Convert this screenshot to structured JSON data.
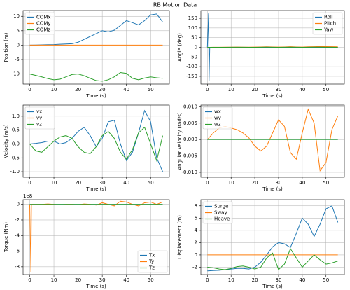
{
  "title": "RB Motion Data",
  "chart_data": [
    {
      "type": "line",
      "x_label": "Time (s)",
      "y_label": "Position (m)",
      "x": [
        0,
        2.5,
        5,
        7.5,
        10,
        12.5,
        15,
        17.5,
        20,
        22.5,
        25,
        27.5,
        30,
        32.5,
        35,
        37.5,
        40,
        42.5,
        45,
        47.5,
        50,
        52.5,
        55
      ],
      "xlim": [
        -2.75,
        57.75
      ],
      "xticks": [
        0,
        10,
        20,
        30,
        40,
        50
      ],
      "ylim": [
        -13.5,
        12
      ],
      "yticks": [
        -10,
        -5,
        0,
        5,
        10
      ],
      "grid": true,
      "legend": "upper left",
      "series": [
        {
          "name": "COMx",
          "color": "#1f77b4",
          "values": [
            0,
            0.05,
            0.1,
            0.15,
            0.2,
            0.3,
            0.4,
            0.5,
            1.0,
            2.0,
            3.0,
            4.0,
            5.0,
            4.6,
            5.2,
            6.8,
            8.5,
            7.8,
            7.0,
            8.5,
            10.5,
            10.8,
            8.0
          ]
        },
        {
          "name": "COMy",
          "color": "#ff7f0e",
          "values": [
            0,
            0,
            0,
            0,
            0,
            0,
            0,
            0,
            0,
            0,
            0,
            0,
            0,
            0,
            0,
            0,
            0,
            0,
            0,
            0,
            0,
            0,
            0
          ]
        },
        {
          "name": "COMz",
          "color": "#2ca02c",
          "values": [
            -10,
            -10.5,
            -11,
            -11.6,
            -12,
            -11.8,
            -11,
            -10.2,
            -10,
            -10.6,
            -11.5,
            -12.3,
            -12.5,
            -12,
            -11,
            -9.5,
            -9.8,
            -11.5,
            -12,
            -11.4,
            -11,
            -11.3,
            -11.5
          ]
        }
      ]
    },
    {
      "type": "line",
      "x_label": "Time (s)",
      "y_label": "Angle (deg)",
      "x": [
        0,
        0.5,
        0.7,
        1,
        2.5,
        5,
        7.5,
        10,
        12.5,
        15,
        17.5,
        20,
        22.5,
        25,
        27.5,
        30,
        32.5,
        35,
        37.5,
        40,
        42.5,
        45,
        47.5,
        50,
        52.5,
        55
      ],
      "xlim": [
        -2.75,
        57.75
      ],
      "xticks": [
        0,
        10,
        20,
        30,
        40,
        50
      ],
      "ylim": [
        -190,
        190
      ],
      "yticks": [
        -150,
        -100,
        -50,
        0,
        50,
        100,
        150
      ],
      "grid": true,
      "legend": "upper right",
      "series": [
        {
          "name": "Roll",
          "color": "#1f77b4",
          "values": [
            0,
            175,
            -175,
            0,
            0,
            0,
            0,
            0,
            0,
            0,
            0,
            0,
            0,
            0,
            0,
            0,
            0,
            0,
            0,
            0,
            0,
            0,
            0,
            0,
            0,
            0
          ]
        },
        {
          "name": "Pitch",
          "color": "#ff7f0e",
          "values": [
            0,
            0,
            0,
            0,
            0.5,
            0.5,
            1,
            1,
            1.5,
            1,
            1,
            1.5,
            2,
            2.5,
            2,
            1.5,
            2,
            3,
            2,
            1.5,
            2.5,
            3,
            4,
            3.5,
            3,
            2.5
          ]
        },
        {
          "name": "Yaw",
          "color": "#2ca02c",
          "values": [
            0,
            0,
            0,
            0,
            0,
            0,
            0,
            0.5,
            0.5,
            0.5,
            0,
            0,
            0.5,
            1,
            0.5,
            0,
            0.5,
            1,
            0.5,
            0,
            0.5,
            1,
            1,
            0.5,
            0.5,
            0
          ]
        }
      ]
    },
    {
      "type": "line",
      "x_label": "Time (s)",
      "y_label": "Velocity (m/s)",
      "x": [
        0,
        2.5,
        5,
        7.5,
        10,
        12.5,
        15,
        17.5,
        20,
        22.5,
        25,
        27.5,
        30,
        32.5,
        35,
        37.5,
        40,
        42.5,
        45,
        47.5,
        50,
        52.5,
        55
      ],
      "xlim": [
        -2.75,
        57.75
      ],
      "xticks": [
        0,
        10,
        20,
        30,
        40,
        50
      ],
      "ylim": [
        -1.2,
        1.4
      ],
      "yticks": [
        {
          "value": -1,
          "label": "-1.0"
        },
        -0.5,
        {
          "value": 0,
          "label": "0.0"
        },
        0.5,
        {
          "value": 1,
          "label": "1.0"
        }
      ],
      "grid": true,
      "legend": "upper left",
      "series": [
        {
          "name": "vx",
          "color": "#1f77b4",
          "values": [
            0,
            0.02,
            0.05,
            0.1,
            0.1,
            0.0,
            0.05,
            0.2,
            0.45,
            0.6,
            0.3,
            -0.1,
            0.2,
            0.8,
            0.85,
            0.0,
            -0.6,
            -0.3,
            0.4,
            1.2,
            0.8,
            -0.5,
            -1.0
          ]
        },
        {
          "name": "vy",
          "color": "#ff7f0e",
          "values": [
            0,
            0,
            0,
            0,
            0,
            0,
            0,
            0,
            0,
            0,
            0,
            0,
            0,
            0,
            0,
            0,
            0,
            0,
            0,
            0,
            0,
            0,
            0
          ]
        },
        {
          "name": "vz",
          "color": "#2ca02c",
          "values": [
            0,
            -0.25,
            -0.3,
            -0.1,
            0.1,
            0.25,
            0.3,
            0.2,
            -0.1,
            -0.3,
            -0.35,
            -0.1,
            0.3,
            0.45,
            0.2,
            -0.3,
            -0.55,
            -0.2,
            0.4,
            0.6,
            0.0,
            -0.6,
            0.3
          ]
        }
      ]
    },
    {
      "type": "line",
      "x_label": "Time (s)",
      "y_label": "Angular Velocity (rad/s)",
      "x": [
        0,
        2.5,
        5,
        7.5,
        10,
        12.5,
        15,
        17.5,
        20,
        22.5,
        25,
        27.5,
        30,
        32.5,
        35,
        37.5,
        40,
        42.5,
        45,
        47.5,
        50,
        52.5,
        55
      ],
      "xlim": [
        -2.75,
        57.75
      ],
      "xticks": [
        0,
        10,
        20,
        30,
        40,
        50
      ],
      "ylim": [
        -0.0115,
        0.0105
      ],
      "yticks": [
        {
          "value": -0.01,
          "label": "-0.010"
        },
        {
          "value": -0.005,
          "label": "-0.005"
        },
        {
          "value": 0,
          "label": "0.000"
        },
        {
          "value": 0.005,
          "label": "0.005"
        },
        {
          "value": 0.01,
          "label": "0.010"
        }
      ],
      "grid": true,
      "legend": "upper left",
      "series": [
        {
          "name": "wx",
          "color": "#1f77b4",
          "values": [
            0,
            0,
            0,
            0,
            0,
            0,
            0,
            0,
            0,
            0,
            0,
            0,
            0,
            0,
            0,
            0,
            0,
            0,
            0,
            0,
            0,
            0,
            0
          ]
        },
        {
          "name": "wy",
          "color": "#ff7f0e",
          "values": [
            0,
            0.002,
            0.0035,
            0.004,
            0.0035,
            0.003,
            0.002,
            0.0005,
            -0.002,
            -0.0035,
            -0.002,
            0.002,
            0.006,
            0.004,
            -0.004,
            -0.006,
            0.002,
            0.0092,
            0.005,
            -0.0095,
            -0.007,
            0.003,
            0.0072
          ]
        },
        {
          "name": "wz",
          "color": "#2ca02c",
          "values": [
            0,
            0,
            0,
            0,
            0,
            0,
            0,
            0,
            0,
            0,
            0,
            0,
            0,
            0,
            0,
            0,
            0,
            0,
            0,
            0,
            0,
            0,
            0
          ]
        }
      ]
    },
    {
      "type": "line",
      "x_label": "Time (s)",
      "y_label": "Torque (Nm)",
      "offset_label": "1e8",
      "x": [
        0,
        0.5,
        0.7,
        1,
        2.5,
        5,
        7.5,
        10,
        12.5,
        15,
        17.5,
        20,
        22.5,
        25,
        27.5,
        30,
        32.5,
        35,
        37.5,
        40,
        42.5,
        45,
        47.5,
        50,
        52.5,
        55
      ],
      "xlim": [
        -2.75,
        57.75
      ],
      "xticks": [
        0,
        10,
        20,
        30,
        40,
        50
      ],
      "ylim": [
        -9,
        0.6
      ],
      "yticks": [
        -8,
        -6,
        -4,
        -2,
        0
      ],
      "grid": true,
      "legend": "lower right",
      "series": [
        {
          "name": "Tx",
          "color": "#1f77b4",
          "values": [
            0,
            0,
            0,
            0,
            0,
            0,
            0,
            0,
            0,
            0,
            0,
            0,
            0,
            0,
            0,
            0,
            0,
            0,
            0,
            0,
            0,
            0,
            0,
            0,
            0,
            0
          ]
        },
        {
          "name": "Ty",
          "color": "#ff7f0e",
          "values": [
            0,
            -8.7,
            0,
            0,
            0,
            0,
            0.05,
            0,
            -0.05,
            0,
            0,
            -0.05,
            0.05,
            0,
            -0.1,
            0.2,
            0,
            -0.2,
            0.4,
            0.3,
            0,
            -0.2,
            0.2,
            0.3,
            0,
            0.3
          ]
        },
        {
          "name": "Tz",
          "color": "#2ca02c",
          "values": [
            0,
            0,
            0,
            0,
            0,
            0,
            0,
            0,
            0,
            0,
            0,
            0,
            0,
            0,
            0,
            0,
            0,
            0,
            0,
            0,
            0,
            0,
            0,
            0,
            0,
            0
          ]
        }
      ]
    },
    {
      "type": "line",
      "x_label": "Time (s)",
      "y_label": "Displacement (m)",
      "x": [
        0,
        2.5,
        5,
        7.5,
        10,
        12.5,
        15,
        17.5,
        20,
        22.5,
        25,
        27.5,
        30,
        32.5,
        35,
        37.5,
        40,
        42.5,
        45,
        47.5,
        50,
        52.5,
        55
      ],
      "xlim": [
        -2.75,
        57.75
      ],
      "xticks": [
        0,
        10,
        20,
        30,
        40,
        50
      ],
      "ylim": [
        -3.2,
        9
      ],
      "yticks": [
        -2,
        0,
        2,
        4,
        6,
        8
      ],
      "grid": true,
      "legend": "upper left",
      "series": [
        {
          "name": "Surge",
          "color": "#1f77b4",
          "values": [
            -2.6,
            -2.55,
            -2.5,
            -2.4,
            -2.3,
            -2.2,
            -2.2,
            -2.3,
            -2.0,
            -1.2,
            0,
            1.3,
            2.0,
            1.8,
            1.2,
            3.5,
            6,
            5,
            3,
            5,
            7.5,
            8,
            5.3
          ]
        },
        {
          "name": "Sway",
          "color": "#ff7f0e",
          "values": [
            0,
            0,
            0,
            0,
            0,
            0,
            0,
            0,
            0,
            0,
            0,
            0,
            0,
            0,
            0,
            0,
            0,
            0,
            0,
            0,
            0,
            0,
            0
          ]
        },
        {
          "name": "Heave",
          "color": "#2ca02c",
          "values": [
            -2.0,
            -2.1,
            -2.3,
            -2.4,
            -2.2,
            -1.9,
            -1.8,
            -2.0,
            -2.3,
            -2.0,
            -0.5,
            0.3,
            -2.4,
            -1.5,
            1.0,
            -0.5,
            -2.0,
            -1.0,
            0,
            -0.8,
            -1.5,
            -1.3,
            -1.0
          ]
        }
      ]
    }
  ]
}
